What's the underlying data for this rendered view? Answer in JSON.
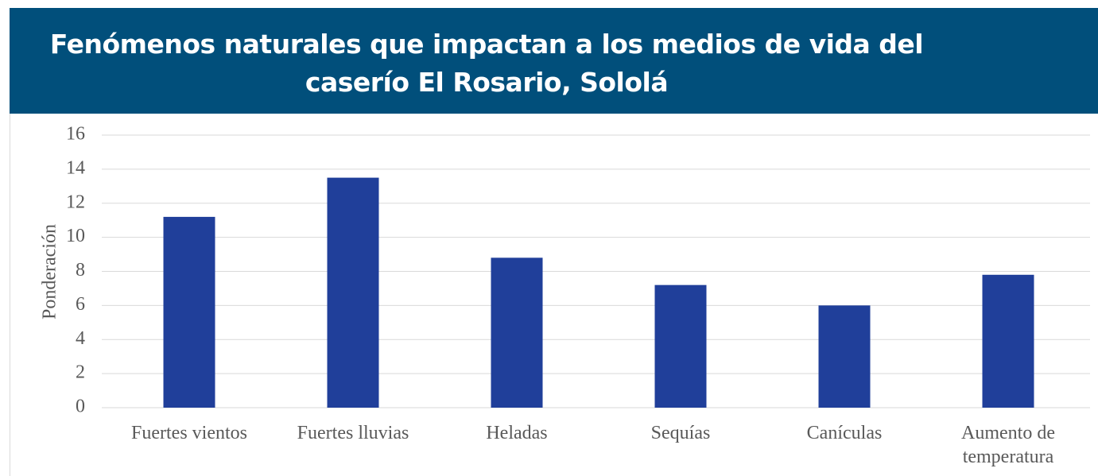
{
  "chart_data": {
    "type": "bar",
    "title": [
      "Fenómenos naturales que impactan a los medios de vida del",
      "caserío El Rosario, Sololá"
    ],
    "y_label": "Ponderación",
    "categories": [
      "Fuertes vientos",
      "Fuertes lluvias",
      "Heladas",
      "Sequías",
      "Canículas",
      "Aumento de temperatura"
    ],
    "values": [
      11.2,
      13.5,
      8.8,
      7.2,
      6.0,
      7.8
    ],
    "color": "#203f9a",
    "ylim": [
      0,
      16
    ],
    "yticks": [
      0,
      2,
      4,
      6,
      8,
      10,
      12,
      14,
      16
    ],
    "grid": true
  }
}
